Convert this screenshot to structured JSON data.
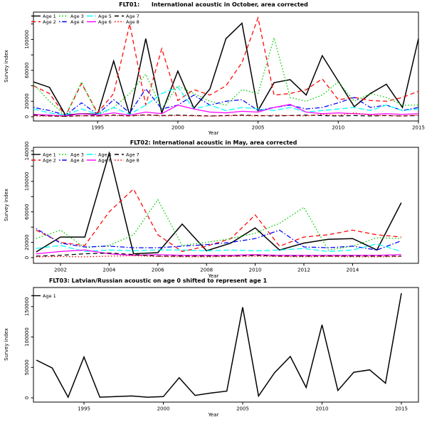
{
  "page_background": "#ffffff",
  "axis_color": "#000000",
  "chart_data": [
    {
      "type": "line",
      "title": "FLT01:      International acoustic in October, area corrected",
      "xlabel": "Year",
      "ylabel": "Survey index",
      "ylim": [
        0,
        130000
      ],
      "grid": false,
      "legend_position": "top-left",
      "legend_columns": 4,
      "years": [
        1991,
        1992,
        1993,
        1994,
        1995,
        1996,
        1997,
        1998,
        1999,
        2000,
        2001,
        2002,
        2003,
        2004,
        2005,
        2006,
        2007,
        2008,
        2009,
        2010,
        2011,
        2012,
        2013,
        2014,
        2015
      ],
      "x_ticks": [
        1995,
        2000,
        2005,
        2010,
        2015
      ],
      "y_ticks": [
        {
          "value": 0,
          "label": "0"
        },
        {
          "value": 20000,
          "label": "20000"
        },
        {
          "value": 40000,
          "label": ""
        },
        {
          "value": 60000,
          "label": "60000"
        },
        {
          "value": 80000,
          "label": ""
        },
        {
          "value": 100000,
          "label": "100000"
        },
        {
          "value": 120000,
          "label": ""
        }
      ],
      "series": [
        {
          "name": "Age 1",
          "color": "#000000",
          "linetype": "solid",
          "values": [
            45000,
            38000,
            2000,
            4000,
            3000,
            72000,
            2000,
            101000,
            5000,
            59000,
            11000,
            36000,
            101000,
            121000,
            8000,
            44000,
            48000,
            28000,
            79000,
            46000,
            13000,
            30000,
            42000,
            12000,
            101000
          ]
        },
        {
          "name": "Age 2",
          "color": "#ff0000",
          "linetype": "dashed",
          "values": [
            40000,
            30000,
            1000,
            43000,
            5000,
            30000,
            120000,
            15000,
            88000,
            21000,
            35000,
            28000,
            40000,
            70000,
            128000,
            28000,
            30000,
            35000,
            49000,
            22000,
            25000,
            21000,
            20000,
            25000,
            33000
          ]
        },
        {
          "name": "Age 3",
          "color": "#00cd00",
          "linetype": "dotted",
          "values": [
            42000,
            20000,
            1000,
            45000,
            2000,
            12000,
            30000,
            55000,
            10000,
            40000,
            30000,
            20000,
            15000,
            35000,
            30000,
            102000,
            25000,
            20000,
            28000,
            45000,
            20000,
            30000,
            25000,
            15000,
            15000
          ]
        },
        {
          "name": "Age 4",
          "color": "#0000ff",
          "linetype": "dotdash",
          "values": [
            12000,
            8000,
            2000,
            18000,
            3000,
            22000,
            5000,
            36000,
            10000,
            15000,
            28000,
            15000,
            20000,
            22000,
            8000,
            12000,
            15000,
            10000,
            12000,
            18000,
            25000,
            12000,
            15000,
            8000,
            12000
          ]
        },
        {
          "name": "Age 5",
          "color": "#00ffff",
          "linetype": "longdash",
          "values": [
            10000,
            5000,
            2000,
            10000,
            3000,
            12000,
            3000,
            15000,
            30000,
            38000,
            10000,
            15000,
            8000,
            12000,
            10000,
            8000,
            12000,
            6000,
            8000,
            10000,
            12000,
            8000,
            15000,
            8000,
            10000
          ]
        },
        {
          "name": "Age 6",
          "color": "#ff00ff",
          "linetype": "solid",
          "values": [
            3000,
            2000,
            1000,
            4000,
            2000,
            5000,
            2000,
            6000,
            4000,
            15000,
            10000,
            6000,
            5000,
            7000,
            6000,
            12000,
            16000,
            6000,
            4000,
            5000,
            4000,
            3000,
            4000,
            3000,
            4000
          ]
        },
        {
          "name": "Age 7",
          "color": "#000000",
          "linetype": "dashed",
          "values": [
            2000,
            1000,
            500,
            1500,
            1000,
            2000,
            1000,
            2500,
            1500,
            2000,
            1500,
            1000,
            1500,
            2000,
            1500,
            1000,
            1500,
            2000,
            1500,
            1000,
            1500,
            1000,
            1500,
            1000,
            1500
          ]
        },
        {
          "name": "Age 8",
          "color": "#ff0000",
          "linetype": "dotted",
          "values": [
            1000,
            800,
            500,
            1200,
            800,
            1500,
            1000,
            2000,
            1000,
            1500,
            1000,
            800,
            1200,
            1500,
            1000,
            2000,
            1500,
            1000,
            3000,
            1500,
            5000,
            2000,
            1500,
            1000,
            2000
          ]
        }
      ]
    },
    {
      "type": "line",
      "title": "FLT02: International acoustic in May, area corrected",
      "xlabel": "Year",
      "ylabel": "Survey index",
      "ylim": [
        0,
        145000
      ],
      "grid": false,
      "legend_position": "top-left",
      "legend_columns": 4,
      "years": [
        2001,
        2002,
        2003,
        2004,
        2005,
        2006,
        2007,
        2008,
        2009,
        2010,
        2011,
        2012,
        2013,
        2014,
        2015,
        2016
      ],
      "x_ticks": [
        2002,
        2004,
        2006,
        2008,
        2010,
        2012,
        2014
      ],
      "y_ticks": [
        {
          "value": 0,
          "label": "0"
        },
        {
          "value": 20000,
          "label": "20000"
        },
        {
          "value": 40000,
          "label": ""
        },
        {
          "value": 60000,
          "label": "60000"
        },
        {
          "value": 80000,
          "label": ""
        },
        {
          "value": 100000,
          "label": "100000"
        },
        {
          "value": 120000,
          "label": ""
        },
        {
          "value": 140000,
          "label": "140000"
        }
      ],
      "series": [
        {
          "name": "Age 1",
          "color": "#000000",
          "linetype": "solid",
          "values": [
            7500,
            27000,
            27000,
            137000,
            5000,
            6500,
            44000,
            9000,
            19000,
            39000,
            10000,
            19000,
            24000,
            25000,
            10000,
            72000
          ]
        },
        {
          "name": "Age 2",
          "color": "#ff0000",
          "linetype": "dashed",
          "values": [
            36000,
            20000,
            16000,
            60000,
            90000,
            30000,
            8000,
            15000,
            25000,
            56000,
            15000,
            27000,
            30000,
            36000,
            30000,
            27000
          ]
        },
        {
          "name": "Age 3",
          "color": "#00cd00",
          "linetype": "dotted",
          "values": [
            25000,
            36000,
            13000,
            16000,
            30000,
            76000,
            16000,
            20000,
            25000,
            32000,
            45000,
            66000,
            10000,
            15000,
            26000,
            25000
          ]
        },
        {
          "name": "Age 4",
          "color": "#0000ff",
          "linetype": "dotdash",
          "values": [
            38000,
            19000,
            14000,
            15000,
            13000,
            13000,
            15000,
            17000,
            20000,
            25000,
            36000,
            14000,
            13000,
            15000,
            10000,
            22000
          ]
        },
        {
          "name": "Age 5",
          "color": "#00ffff",
          "linetype": "longdash",
          "values": [
            12000,
            16000,
            8000,
            10000,
            9000,
            10000,
            10000,
            9000,
            10000,
            9000,
            10000,
            12000,
            8000,
            10000,
            18000,
            8000
          ]
        },
        {
          "name": "Age 6",
          "color": "#ff00ff",
          "linetype": "solid",
          "values": [
            5000,
            8000,
            10000,
            5000,
            3000,
            4000,
            3000,
            3000,
            3000,
            4000,
            3000,
            3000,
            3000,
            3000,
            3000,
            4000
          ]
        },
        {
          "name": "Age 7",
          "color": "#000000",
          "linetype": "dashed",
          "values": [
            2000,
            3000,
            5000,
            6000,
            4000,
            2000,
            2000,
            2000,
            2000,
            3000,
            2000,
            2000,
            2000,
            2000,
            2000,
            2000
          ]
        },
        {
          "name": "Age 8",
          "color": "#ff0000",
          "linetype": "dotted",
          "values": [
            1000,
            1500,
            1000,
            2000,
            2500,
            1500,
            1000,
            1000,
            1500,
            2000,
            1500,
            1000,
            1500,
            1000,
            1000,
            1500
          ]
        }
      ]
    },
    {
      "type": "line",
      "title": "FLT03: Latvian/Russian acoustic on age 0 shifted to represent age 1",
      "xlabel": "Year",
      "ylabel": "Survey index",
      "ylim": [
        0,
        180000
      ],
      "grid": false,
      "legend_position": "top-left",
      "legend_columns": 1,
      "years": [
        1992,
        1993,
        1994,
        1995,
        1996,
        1997,
        1998,
        1999,
        2000,
        2001,
        2002,
        2003,
        2004,
        2005,
        2006,
        2007,
        2008,
        2009,
        2010,
        2011,
        2012,
        2013,
        2014,
        2015
      ],
      "x_ticks": [
        1995,
        2000,
        2005,
        2010,
        2015
      ],
      "y_ticks": [
        {
          "value": 0,
          "label": "0"
        },
        {
          "value": 50000,
          "label": "50000"
        },
        {
          "value": 100000,
          "label": "100000"
        },
        {
          "value": 150000,
          "label": "150000"
        }
      ],
      "series": [
        {
          "name": "Age 1",
          "color": "#000000",
          "linetype": "solid",
          "values": [
            62000,
            49000,
            1000,
            67000,
            1000,
            2000,
            3000,
            1000,
            2000,
            33000,
            4000,
            8000,
            11000,
            149000,
            3000,
            41000,
            68000,
            17000,
            120000,
            12000,
            42000,
            46000,
            24000,
            172000
          ]
        }
      ]
    }
  ]
}
